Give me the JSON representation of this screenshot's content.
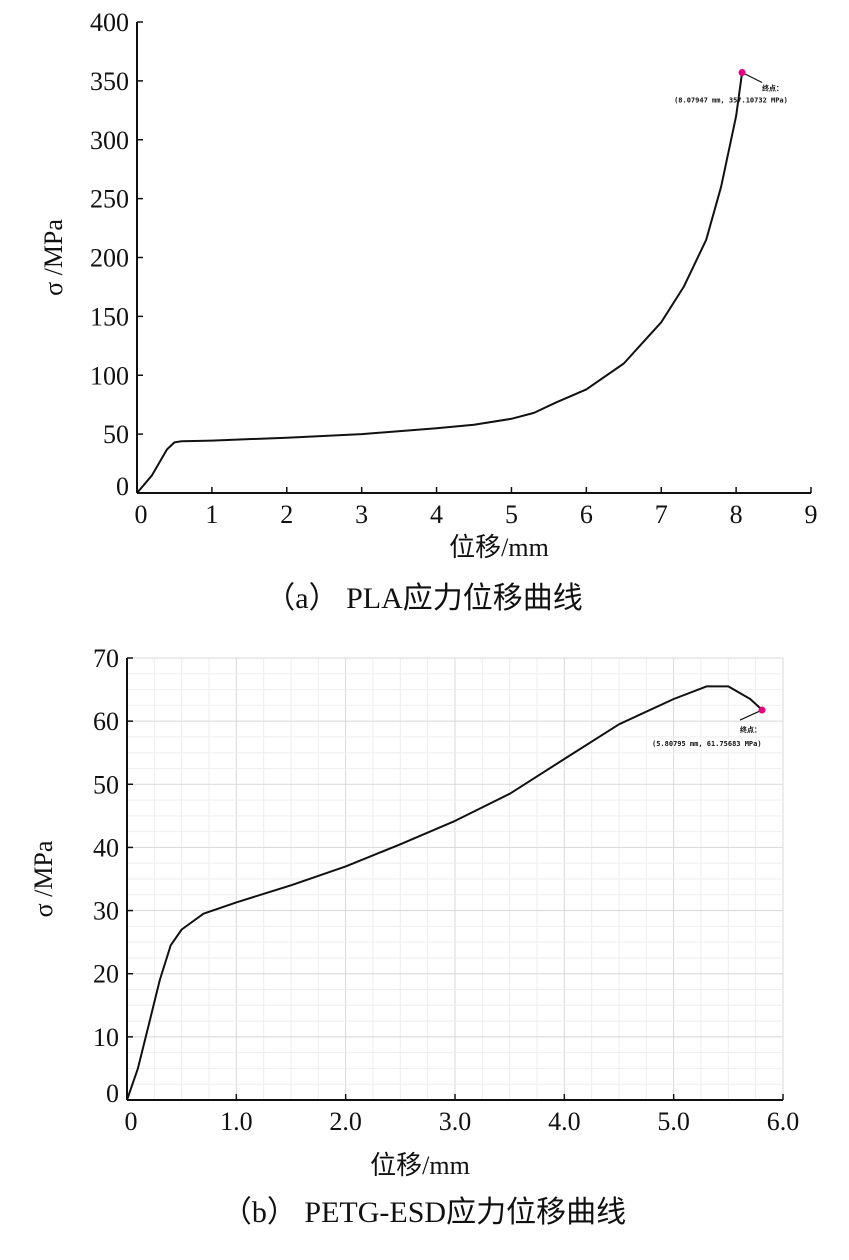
{
  "chart_data": [
    {
      "type": "line",
      "title": "",
      "caption": "（a） PLA应力位移曲线",
      "xlabel": "位移/mm",
      "ylabel": "σ /MPa",
      "xlim": [
        0,
        9
      ],
      "ylim": [
        0,
        400
      ],
      "xticks": [
        "0",
        "1",
        "2",
        "3",
        "4",
        "5",
        "6",
        "7",
        "8",
        "9"
      ],
      "yticks": [
        "0",
        "50",
        "100",
        "150",
        "200",
        "250",
        "300",
        "350",
        "400"
      ],
      "grid": false,
      "x": [
        0,
        0.2,
        0.4,
        0.5,
        0.6,
        1,
        2,
        3,
        4,
        4.5,
        5,
        5.3,
        5.6,
        6,
        6.5,
        7,
        7.3,
        7.6,
        7.8,
        8.0,
        8.08
      ],
      "y": [
        0,
        15,
        37,
        43,
        44,
        44.5,
        47,
        50,
        55,
        58,
        63,
        68,
        77,
        88,
        110,
        145,
        175,
        215,
        260,
        320,
        357.1
      ],
      "endpoint": {
        "label": "终点：",
        "text": "(8.07947 mm, 357.10732 MPa)",
        "x": 8.07947,
        "y": 357.10732,
        "color": "#e6007e"
      }
    },
    {
      "type": "line",
      "title": "",
      "caption": "（b） PETG-ESD应力位移曲线",
      "xlabel": "位移/mm",
      "ylabel": "σ /MPa",
      "xlim": [
        0,
        6
      ],
      "ylim": [
        0,
        70
      ],
      "xticks": [
        "0",
        "1.0",
        "2.0",
        "3.0",
        "4.0",
        "5.0",
        "6.0"
      ],
      "yticks": [
        "0",
        "10",
        "20",
        "30",
        "40",
        "50",
        "60",
        "70"
      ],
      "grid": true,
      "x": [
        0,
        0.1,
        0.2,
        0.3,
        0.4,
        0.5,
        0.7,
        1,
        1.5,
        2,
        2.5,
        3,
        3.5,
        4,
        4.5,
        5,
        5.3,
        5.5,
        5.7,
        5.81
      ],
      "y": [
        0,
        5,
        12,
        19,
        24.5,
        27,
        29.5,
        31.3,
        34,
        37,
        40.5,
        44.2,
        48.5,
        54,
        59.5,
        63.5,
        65.5,
        65.5,
        63.5,
        61.76
      ],
      "endpoint": {
        "label": "终点：",
        "text": "(5.80795 mm, 61.75683 MPa)",
        "x": 5.80795,
        "y": 61.75683,
        "color": "#e6007e"
      }
    }
  ]
}
